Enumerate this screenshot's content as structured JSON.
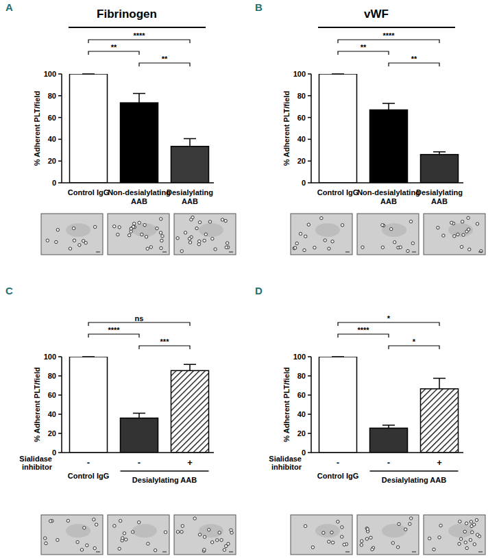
{
  "chart_data": [
    {
      "type": "bar",
      "panel_label": "A",
      "title": "Fibrinogen",
      "y_label": "% Adherent PLT/field",
      "categories": [
        "Control IgG",
        "Non-desialylating AAB",
        "Desialylating AAB"
      ],
      "series": [
        {
          "values": [
            100,
            73.5,
            33.5
          ],
          "errors": [
            0,
            8.5,
            7
          ],
          "colors": [
            "#ffffff",
            "#000000",
            "#3a3a3a"
          ],
          "line_style": "solid"
        }
      ],
      "ylim": [
        0,
        100
      ],
      "yticks": [
        0,
        20,
        40,
        60,
        80,
        100
      ],
      "grid": false,
      "significance": [
        {
          "from": 1,
          "to": 2,
          "label": "**"
        },
        {
          "from": 0,
          "to": 1,
          "label": "**"
        },
        {
          "from": 0,
          "to": 2,
          "label": "****"
        }
      ]
    },
    {
      "type": "bar",
      "panel_label": "B",
      "title": "vWF",
      "y_label": "% Adherent PLT/field",
      "categories": [
        "Control IgG",
        "Non-desialylating AAB",
        "Desialylating AAB"
      ],
      "series": [
        {
          "values": [
            100,
            67,
            26
          ],
          "errors": [
            0,
            6,
            2.5
          ],
          "colors": [
            "#ffffff",
            "#000000",
            "#333333"
          ],
          "line_style": "solid"
        }
      ],
      "ylim": [
        0,
        100
      ],
      "yticks": [
        0,
        20,
        40,
        60,
        80,
        100
      ],
      "grid": false,
      "significance": [
        {
          "from": 1,
          "to": 2,
          "label": "**"
        },
        {
          "from": 0,
          "to": 1,
          "label": "**"
        },
        {
          "from": 0,
          "to": 2,
          "label": "****"
        }
      ]
    },
    {
      "type": "bar",
      "panel_label": "C",
      "y_label": "% Adherent PLT/field",
      "categories": [
        "Control IgG",
        null,
        null
      ],
      "category_groups": [
        {
          "label": "Desialylating AAB",
          "from": 1,
          "to": 2
        }
      ],
      "inhibitor_row": {
        "label": "Sialidase inhibitor",
        "signs": [
          "-",
          "-",
          "+"
        ]
      },
      "series": [
        {
          "values": [
            100,
            36,
            null
          ],
          "errors": [
            0,
            5,
            null
          ],
          "colors": [
            "#ffffff",
            "#333333",
            null
          ],
          "line_style": "solid"
        },
        {
          "values": [
            null,
            null,
            85.5
          ],
          "errors": [
            null,
            null,
            6.5
          ],
          "color": "#ffffff",
          "line_style": "hatched"
        }
      ],
      "ylim": [
        0,
        100
      ],
      "yticks": [
        0,
        20,
        40,
        60,
        80,
        100
      ],
      "grid": false,
      "significance": [
        {
          "from": 1,
          "to": 2,
          "label": "***"
        },
        {
          "from": 0,
          "to": 1,
          "label": "****"
        },
        {
          "from": 0,
          "to": 2,
          "label": "ns"
        }
      ]
    },
    {
      "type": "bar",
      "panel_label": "D",
      "y_label": "% Adherent PLT/field",
      "categories": [
        "Control IgG",
        null,
        null
      ],
      "category_groups": [
        {
          "label": "Desialylating AAB",
          "from": 1,
          "to": 2
        }
      ],
      "inhibitor_row": {
        "label": "Sialidase inhibitor",
        "signs": [
          "-",
          "-",
          "+"
        ]
      },
      "series": [
        {
          "values": [
            100,
            25.5,
            null
          ],
          "errors": [
            0,
            3,
            null
          ],
          "colors": [
            "#ffffff",
            "#333333",
            null
          ],
          "line_style": "solid"
        },
        {
          "values": [
            null,
            null,
            66.5
          ],
          "errors": [
            null,
            null,
            11
          ],
          "color": "#ffffff",
          "line_style": "hatched"
        }
      ],
      "ylim": [
        0,
        100
      ],
      "yticks": [
        0,
        20,
        40,
        60,
        80,
        100
      ],
      "grid": false,
      "significance": [
        {
          "from": 1,
          "to": 2,
          "label": "*"
        },
        {
          "from": 0,
          "to": 1,
          "label": "****"
        },
        {
          "from": 0,
          "to": 2,
          "label": "*"
        }
      ]
    }
  ]
}
